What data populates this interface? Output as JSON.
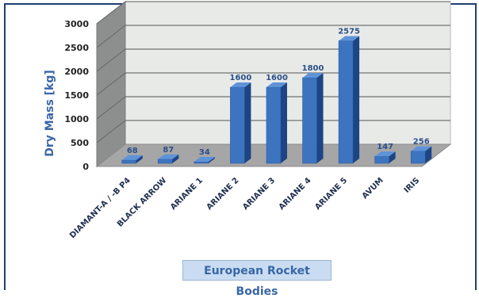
{
  "chart_data": {
    "type": "bar",
    "title": "",
    "xlabel": "European Rocket Bodies",
    "ylabel": "Dry Mass [kg]",
    "ylim": [
      0,
      3000
    ],
    "yticks": [
      "0",
      "500",
      "1000",
      "1500",
      "2000",
      "2500",
      "3000"
    ],
    "categories": [
      "DIAMANT-A / -B P4",
      "BLACK ARROW",
      "ARIANE 1",
      "ARIANE 2",
      "ARIANE 3",
      "ARIANE 4",
      "ARIANE 5",
      "AVUM",
      "IRIS"
    ],
    "values": [
      68,
      87,
      34,
      1600,
      1600,
      1800,
      2575,
      147,
      256
    ],
    "value_labels": [
      "68",
      "87",
      "34",
      "1600",
      "1600",
      "1800",
      "2575",
      "147",
      "256"
    ],
    "grid": true,
    "style": "3d-column",
    "bar_color": "#3d74bf"
  }
}
